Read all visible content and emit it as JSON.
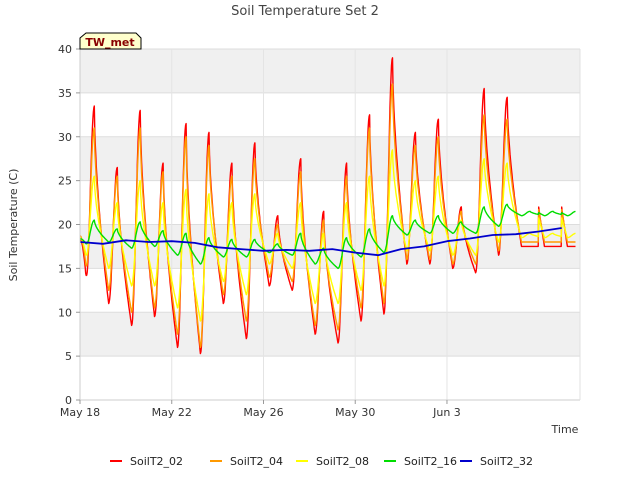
{
  "chart_data": {
    "type": "line",
    "title": "Soil Temperature Set 2",
    "xlabel": "Time",
    "ylabel": "Soil Temperature (C)",
    "annotation": "TW_met",
    "ylim": [
      0,
      40
    ],
    "yticks": [
      0,
      5,
      10,
      15,
      20,
      25,
      30,
      35,
      40
    ],
    "xlim_days": [
      0,
      21.8
    ],
    "xticks": [
      {
        "day": 0,
        "label": "May 18"
      },
      {
        "day": 4,
        "label": "May 22"
      },
      {
        "day": 8,
        "label": "May 26"
      },
      {
        "day": 12,
        "label": "May 30"
      },
      {
        "day": 16,
        "label": "Jun 3"
      }
    ],
    "grid": true,
    "legend_position": "bottom",
    "series": [
      {
        "name": "SoilT2_02",
        "color": "#ff0000",
        "daily_min": [
          12.0,
          11.0,
          8.5,
          9.5,
          6.0,
          5.3,
          11.0,
          7.0,
          13.0,
          12.5,
          7.5,
          6.5,
          9.0,
          9.8,
          15.5,
          15.5,
          15.0,
          14.5,
          16.5,
          17.5
        ],
        "daily_max": [
          33.5,
          26.5,
          33.0,
          27.0,
          31.5,
          30.5,
          27.0,
          29.3,
          21.0,
          27.5,
          21.5,
          27.0,
          32.5,
          39.0,
          30.5,
          32.0,
          22.0,
          35.5,
          34.5,
          17.5
        ]
      },
      {
        "name": "SoilT2_04",
        "color": "#ff9900",
        "daily_min": [
          13.5,
          12.5,
          10.0,
          10.5,
          7.5,
          6.0,
          12.0,
          9.0,
          14.0,
          13.5,
          8.5,
          8.0,
          10.5,
          11.0,
          16.0,
          16.0,
          15.5,
          15.5,
          17.0,
          18.0
        ],
        "daily_max": [
          31.0,
          25.5,
          31.0,
          26.0,
          30.0,
          29.0,
          25.5,
          27.5,
          20.0,
          26.0,
          20.5,
          25.5,
          31.0,
          36.0,
          29.0,
          30.0,
          21.5,
          32.5,
          32.0,
          18.0
        ]
      },
      {
        "name": "SoilT2_08",
        "color": "#ffff00",
        "daily_min": [
          15.5,
          15.0,
          13.0,
          13.0,
          10.5,
          9.0,
          13.5,
          12.0,
          15.5,
          15.0,
          11.0,
          11.0,
          12.5,
          13.0,
          17.0,
          17.0,
          16.5,
          16.5,
          18.0,
          18.5
        ],
        "daily_max": [
          25.5,
          22.5,
          25.0,
          22.5,
          24.0,
          23.5,
          22.5,
          23.5,
          19.0,
          22.5,
          19.0,
          22.5,
          25.5,
          28.5,
          25.0,
          25.5,
          20.5,
          27.5,
          27.0,
          19.0
        ]
      },
      {
        "name": "SoilT2_16",
        "color": "#00dd00",
        "daily_min": [
          17.5,
          18.0,
          17.3,
          17.5,
          16.5,
          15.5,
          16.3,
          16.3,
          16.8,
          16.5,
          15.5,
          15.0,
          16.3,
          16.8,
          18.8,
          19.0,
          19.0,
          19.0,
          19.8,
          21.0
        ],
        "daily_max": [
          20.5,
          19.5,
          20.3,
          19.3,
          19.0,
          18.5,
          18.3,
          18.3,
          17.8,
          19.0,
          17.3,
          18.5,
          19.5,
          21.0,
          20.5,
          21.0,
          20.3,
          22.0,
          22.3,
          21.5
        ]
      },
      {
        "name": "SoilT2_32",
        "color": "#0000cc",
        "x": [
          0,
          1,
          2,
          3,
          4,
          5,
          6,
          7,
          8,
          9,
          10,
          11,
          12,
          13,
          14,
          15,
          16,
          17,
          18,
          19,
          20,
          21
        ],
        "y": [
          18.0,
          17.8,
          18.2,
          18.0,
          18.1,
          17.9,
          17.4,
          17.2,
          17.0,
          17.1,
          17.0,
          17.2,
          16.8,
          16.5,
          17.2,
          17.5,
          18.1,
          18.4,
          18.8,
          18.9,
          19.2,
          19.6
        ]
      }
    ]
  }
}
